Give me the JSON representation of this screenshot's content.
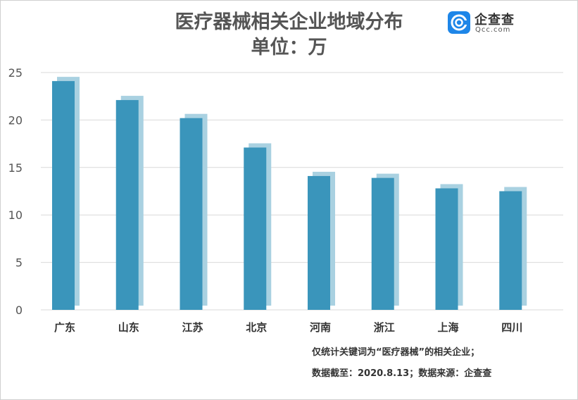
{
  "title": "医疗器械相关企业地域分布",
  "subtitle": "单位：万",
  "logo": {
    "name": "企查查",
    "domain": "Qcc.com",
    "icon": "qcc-logo-icon"
  },
  "notes": [
    "仅统计关键词为“医疗器械”的相关企业；",
    "数据截至：2020.8.13；数据来源：企查查"
  ],
  "colors": {
    "bar": "#3a95bb",
    "bar_shadow": "#a9d1e1",
    "grid": "#d9d9d9",
    "text": "#555555"
  },
  "chart_data": {
    "type": "bar",
    "title": "医疗器械相关企业地域分布",
    "subtitle": "单位：万",
    "categories": [
      "广东",
      "山东",
      "江苏",
      "北京",
      "河南",
      "浙江",
      "上海",
      "四川"
    ],
    "values": [
      24.1,
      22.1,
      20.2,
      17.1,
      14.1,
      13.9,
      12.8,
      12.5
    ],
    "ylim": [
      0,
      25
    ],
    "yticks": [
      0,
      5,
      10,
      15,
      20,
      25
    ],
    "grid": true,
    "xlabel": "",
    "ylabel": ""
  }
}
